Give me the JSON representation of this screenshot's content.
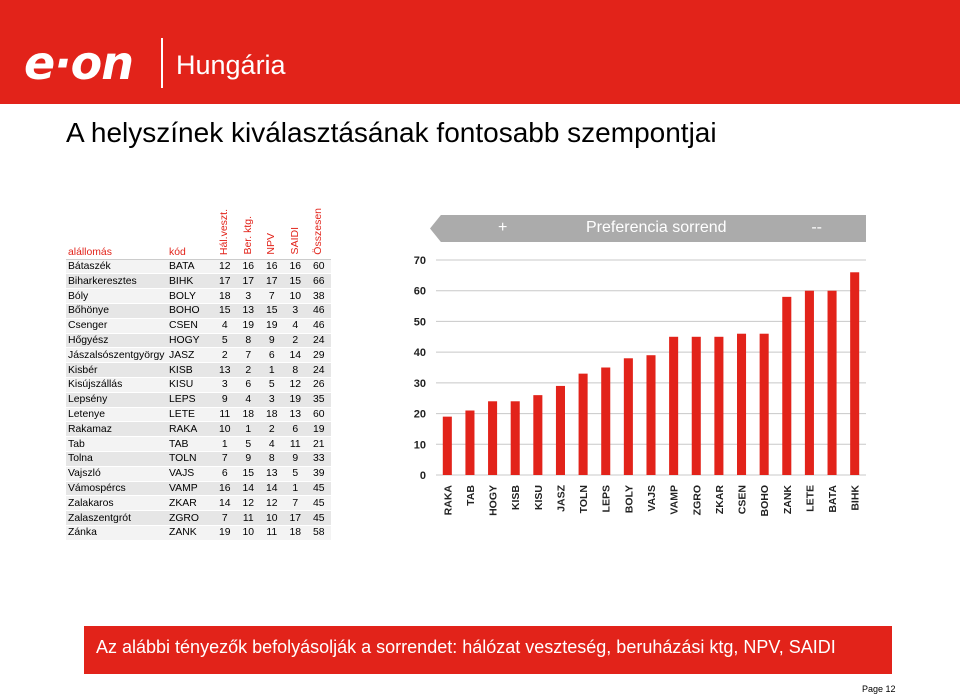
{
  "header": {
    "logo_text": "e·on",
    "subtitle": "Hungária",
    "color": "#e2231a"
  },
  "title": "A helyszínek kiválasztásának fontosabb szempontjai",
  "table": {
    "headers": {
      "location": "alállomás",
      "code": "kód",
      "cols": [
        "Hál.veszt.",
        "Ber. ktg.",
        "NPV",
        "SAIDI",
        "Összesen"
      ]
    },
    "rows": [
      {
        "location": "Bátaszék",
        "code": "BATA",
        "values": [
          "12",
          "16",
          "16",
          "16",
          "60"
        ]
      },
      {
        "location": "Biharkeresztes",
        "code": "BIHK",
        "values": [
          "17",
          "17",
          "17",
          "15",
          "66"
        ]
      },
      {
        "location": "Bóly",
        "code": "BOLY",
        "values": [
          "18",
          "3",
          "7",
          "10",
          "38"
        ]
      },
      {
        "location": "Bőhönye",
        "code": "BOHO",
        "values": [
          "15",
          "13",
          "15",
          "3",
          "46"
        ]
      },
      {
        "location": "Csenger",
        "code": "CSEN",
        "values": [
          "4",
          "19",
          "19",
          "4",
          "46"
        ]
      },
      {
        "location": "Hőgyész",
        "code": "HOGY",
        "values": [
          "5",
          "8",
          "9",
          "2",
          "24"
        ]
      },
      {
        "location": "Jászalsószentgyörgy",
        "code": "JASZ",
        "values": [
          "2",
          "7",
          "6",
          "14",
          "29"
        ]
      },
      {
        "location": "Kisbér",
        "code": "KISB",
        "values": [
          "13",
          "2",
          "1",
          "8",
          "24"
        ]
      },
      {
        "location": "Kisújszállás",
        "code": "KISU",
        "values": [
          "3",
          "6",
          "5",
          "12",
          "26"
        ]
      },
      {
        "location": "Lepsény",
        "code": "LEPS",
        "values": [
          "9",
          "4",
          "3",
          "19",
          "35"
        ]
      },
      {
        "location": "Letenye",
        "code": "LETE",
        "values": [
          "11",
          "18",
          "18",
          "13",
          "60"
        ]
      },
      {
        "location": "Rakamaz",
        "code": "RAKA",
        "values": [
          "10",
          "1",
          "2",
          "6",
          "19"
        ]
      },
      {
        "location": "Tab",
        "code": "TAB",
        "values": [
          "1",
          "5",
          "4",
          "11",
          "21"
        ]
      },
      {
        "location": "Tolna",
        "code": "TOLN",
        "values": [
          "7",
          "9",
          "8",
          "9",
          "33"
        ]
      },
      {
        "location": "Vajszló",
        "code": "VAJS",
        "values": [
          "6",
          "15",
          "13",
          "5",
          "39"
        ]
      },
      {
        "location": "Vámospércs",
        "code": "VAMP",
        "values": [
          "16",
          "14",
          "14",
          "1",
          "45"
        ]
      },
      {
        "location": "Zalakaros",
        "code": "ZKAR",
        "values": [
          "14",
          "12",
          "12",
          "7",
          "45"
        ]
      },
      {
        "location": "Zalaszentgrót",
        "code": "ZGRO",
        "values": [
          "7",
          "11",
          "10",
          "17",
          "45"
        ]
      },
      {
        "location": "Zánka",
        "code": "ZANK",
        "values": [
          "19",
          "10",
          "11",
          "18",
          "58"
        ]
      }
    ]
  },
  "banner": {
    "plus": "+",
    "label": "Preferencia sorrend",
    "minus": "--"
  },
  "chart_data": {
    "type": "bar",
    "categories": [
      "RAKA",
      "TAB",
      "HOGY",
      "KISB",
      "KISU",
      "JASZ",
      "TOLN",
      "LEPS",
      "BOLY",
      "VAJS",
      "VAMP",
      "ZGRO",
      "ZKAR",
      "CSEN",
      "BOHO",
      "ZANK",
      "LETE",
      "BATA",
      "BIHK"
    ],
    "values": [
      19,
      21,
      24,
      24,
      26,
      29,
      33,
      35,
      38,
      39,
      45,
      45,
      45,
      46,
      46,
      58,
      60,
      60,
      66
    ],
    "yticks": [
      "0",
      "10",
      "20",
      "30",
      "40",
      "50",
      "60",
      "70"
    ],
    "ylim": [
      0,
      70
    ],
    "grid": true,
    "bar_color": "#e2231a",
    "grid_color": "#c8c8c8"
  },
  "footer": {
    "text": "Az alábbi tényezők befolyásolják a sorrendet: hálózat veszteség, beruházási ktg, NPV, SAIDI",
    "page": "Page 12"
  }
}
